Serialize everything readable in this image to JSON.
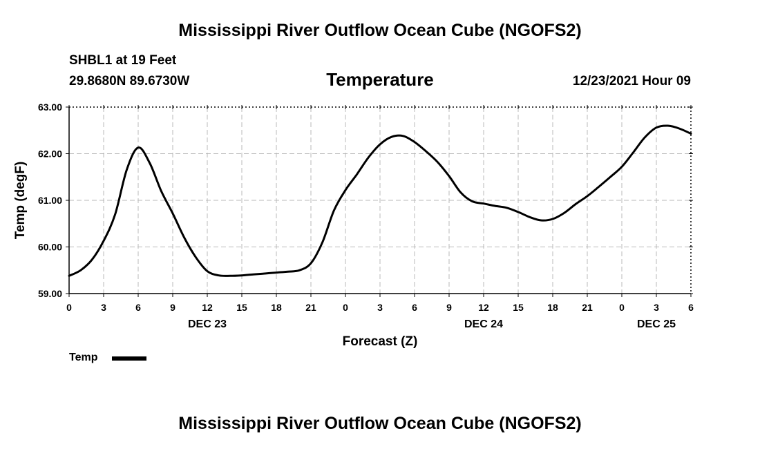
{
  "header": {
    "title": "Mississippi River Outflow Ocean Cube (NGOFS2)",
    "station": "SHBL1 at 19 Feet",
    "coords": "29.8680N  89.6730W",
    "subtitle": "Temperature",
    "datetime": "12/23/2021 Hour 09"
  },
  "footer": {
    "title": "Mississippi River Outflow Ocean Cube (NGOFS2)"
  },
  "chart_data": {
    "type": "line",
    "title": "Temperature",
    "xlabel": "Forecast (Z)",
    "ylabel": "Temp (degF)",
    "ylim": [
      59.0,
      63.0
    ],
    "yticks": [
      "59.00",
      "60.00",
      "61.00",
      "62.00",
      "63.00"
    ],
    "xlim_hours": [
      0,
      54
    ],
    "xtick_hours": [
      0,
      3,
      6,
      9,
      12,
      15,
      18,
      21,
      24,
      27,
      30,
      33,
      36,
      39,
      42,
      45,
      48,
      51,
      54
    ],
    "xtick_labels": [
      "0",
      "3",
      "6",
      "9",
      "12",
      "15",
      "18",
      "21",
      "0",
      "3",
      "6",
      "9",
      "12",
      "15",
      "18",
      "21",
      "0",
      "3",
      "6"
    ],
    "day_labels": [
      {
        "hour": 12,
        "label": "DEC 23"
      },
      {
        "hour": 36,
        "label": "DEC 24"
      },
      {
        "hour": 51,
        "label": "DEC 25"
      }
    ],
    "grid": true,
    "legend_placement": "bottom-left",
    "series": [
      {
        "name": "Temp",
        "color": "#000000",
        "points": [
          [
            0,
            59.38
          ],
          [
            1,
            59.5
          ],
          [
            2,
            59.73
          ],
          [
            3,
            60.13
          ],
          [
            4,
            60.7
          ],
          [
            5,
            61.65
          ],
          [
            6,
            62.13
          ],
          [
            7,
            61.8
          ],
          [
            8,
            61.2
          ],
          [
            9,
            60.72
          ],
          [
            10,
            60.2
          ],
          [
            11,
            59.78
          ],
          [
            12,
            59.48
          ],
          [
            13,
            59.39
          ],
          [
            14,
            59.38
          ],
          [
            15,
            59.39
          ],
          [
            16,
            59.41
          ],
          [
            17,
            59.43
          ],
          [
            18,
            59.45
          ],
          [
            19,
            59.47
          ],
          [
            20,
            59.5
          ],
          [
            21,
            59.65
          ],
          [
            22,
            60.1
          ],
          [
            23,
            60.78
          ],
          [
            24,
            61.22
          ],
          [
            25,
            61.56
          ],
          [
            26,
            61.92
          ],
          [
            27,
            62.2
          ],
          [
            28,
            62.36
          ],
          [
            29,
            62.38
          ],
          [
            30,
            62.25
          ],
          [
            31,
            62.05
          ],
          [
            32,
            61.82
          ],
          [
            33,
            61.52
          ],
          [
            34,
            61.17
          ],
          [
            35,
            60.98
          ],
          [
            36,
            60.93
          ],
          [
            37,
            60.88
          ],
          [
            38,
            60.84
          ],
          [
            39,
            60.75
          ],
          [
            40,
            60.64
          ],
          [
            41,
            60.57
          ],
          [
            42,
            60.6
          ],
          [
            43,
            60.73
          ],
          [
            44,
            60.92
          ],
          [
            45,
            61.09
          ],
          [
            46,
            61.29
          ],
          [
            47,
            61.5
          ],
          [
            48,
            61.72
          ],
          [
            49,
            62.03
          ],
          [
            50,
            62.35
          ],
          [
            51,
            62.56
          ],
          [
            52,
            62.6
          ],
          [
            53,
            62.54
          ],
          [
            54,
            62.43
          ]
        ]
      }
    ]
  }
}
